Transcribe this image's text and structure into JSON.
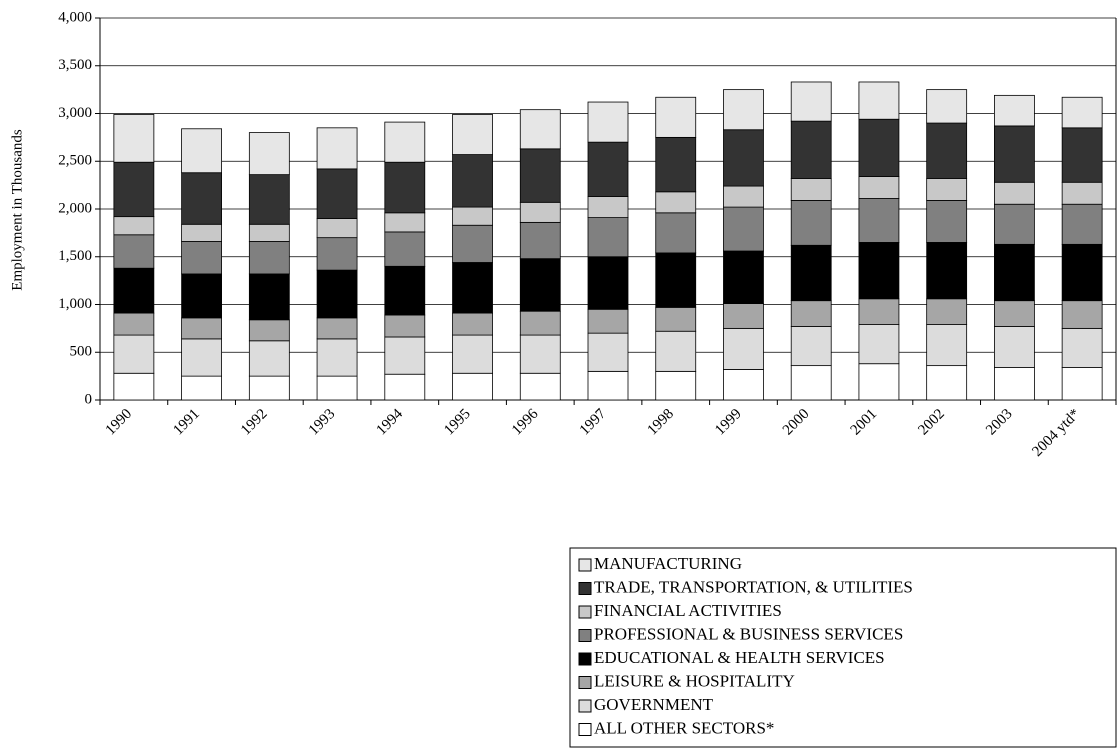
{
  "chart_data": {
    "type": "stacked_bar",
    "y_label": "Employment in Thousands",
    "categories": [
      "1990",
      "1991",
      "1992",
      "1993",
      "1994",
      "1995",
      "1996",
      "1997",
      "1998",
      "1999",
      "2000",
      "2001",
      "2002",
      "2003",
      "2004 ytd*"
    ],
    "series": [
      {
        "name": "ALL OTHER SECTORS*",
        "color": "#ffffff",
        "values": [
          280,
          250,
          250,
          250,
          270,
          280,
          280,
          300,
          300,
          320,
          360,
          380,
          360,
          340,
          340
        ]
      },
      {
        "name": "GOVERNMENT",
        "color": "#dcdcdc",
        "values": [
          400,
          390,
          370,
          390,
          390,
          400,
          400,
          400,
          420,
          430,
          410,
          410,
          430,
          430,
          410
        ]
      },
      {
        "name": "LEISURE & HOSPITALITY",
        "color": "#a6a6a6",
        "values": [
          230,
          220,
          220,
          220,
          230,
          230,
          250,
          250,
          250,
          260,
          270,
          270,
          270,
          270,
          290
        ]
      },
      {
        "name": "EDUCATIONAL & HEALTH SERVICES",
        "color": "#000000",
        "values": [
          470,
          460,
          480,
          500,
          510,
          530,
          550,
          550,
          570,
          550,
          580,
          590,
          590,
          590,
          590
        ]
      },
      {
        "name": "PROFESSIONAL & BUSINESS SERVICES",
        "color": "#808080",
        "values": [
          350,
          340,
          340,
          340,
          360,
          390,
          380,
          410,
          420,
          460,
          470,
          460,
          440,
          420,
          420
        ]
      },
      {
        "name": "FINANCIAL ACTIVITIES",
        "color": "#c8c8c8",
        "values": [
          190,
          180,
          180,
          200,
          200,
          190,
          210,
          220,
          220,
          220,
          230,
          230,
          230,
          230,
          230
        ]
      },
      {
        "name": "TRADE, TRANSPORTATION, & UTILITIES",
        "color": "#333333",
        "values": [
          570,
          540,
          520,
          520,
          530,
          550,
          560,
          570,
          570,
          590,
          600,
          600,
          580,
          590,
          570
        ]
      },
      {
        "name": "MANUFACTURING",
        "color": "#e6e6e6",
        "values": [
          500,
          460,
          440,
          430,
          420,
          420,
          410,
          420,
          420,
          420,
          410,
          390,
          350,
          320,
          320
        ]
      }
    ],
    "ylim": [
      0,
      4000
    ],
    "yticks": [
      0,
      500,
      {
        "value": 1000,
        "label": "1,000"
      },
      {
        "value": 1500,
        "label": "1,500"
      },
      {
        "value": 2000,
        "label": "2,000"
      },
      {
        "value": 2500,
        "label": "2,500"
      },
      {
        "value": 3000,
        "label": "3,000"
      },
      {
        "value": 3500,
        "label": "3,500"
      },
      {
        "value": 4000,
        "label": "4,000"
      }
    ],
    "grid": true
  }
}
